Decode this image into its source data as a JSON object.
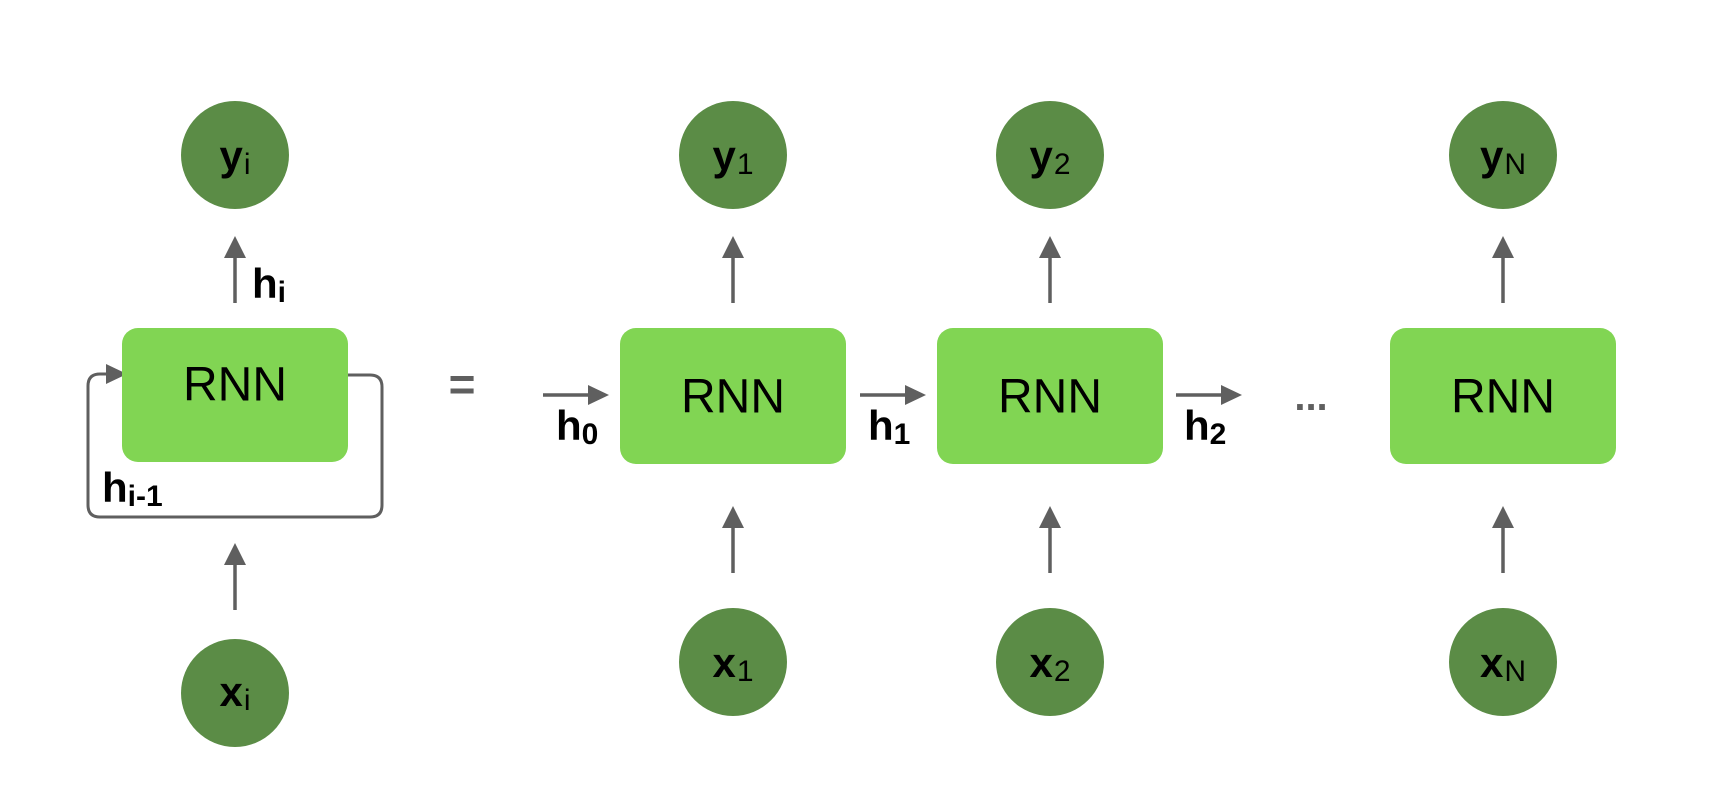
{
  "diagram": {
    "colors": {
      "node": "#5b8c46",
      "cell": "#81d553",
      "arrow": "#5f5f5f",
      "text": "#000000"
    },
    "folded": {
      "cell_label": "RNN",
      "output": {
        "base": "y",
        "sub": "i"
      },
      "input": {
        "base": "x",
        "sub": "i"
      },
      "hidden_out": {
        "base": "h",
        "sub": "i"
      },
      "hidden_prev": {
        "base": "h",
        "sub": "i-1"
      }
    },
    "equals": "=",
    "initial_state": {
      "base": "h",
      "sub": "0"
    },
    "unrolled": [
      {
        "cell_label": "RNN",
        "output": {
          "base": "y",
          "sub": "1"
        },
        "input": {
          "base": "x",
          "sub": "1"
        },
        "state_out": {
          "base": "h",
          "sub": "1"
        }
      },
      {
        "cell_label": "RNN",
        "output": {
          "base": "y",
          "sub": "2"
        },
        "input": {
          "base": "x",
          "sub": "2"
        },
        "state_out": {
          "base": "h",
          "sub": "2"
        }
      },
      {
        "cell_label": "RNN",
        "output": {
          "base": "y",
          "sub": "N"
        },
        "input": {
          "base": "x",
          "sub": "N"
        }
      }
    ],
    "ellipsis": "..."
  }
}
